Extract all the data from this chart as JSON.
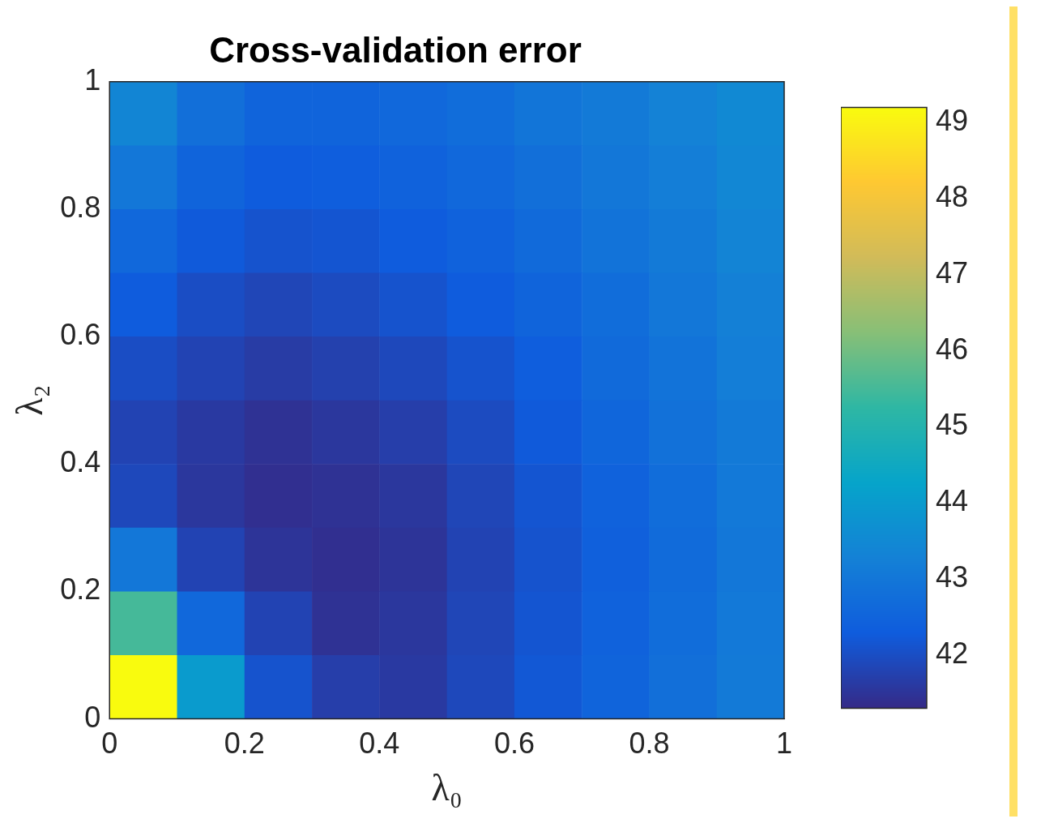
{
  "chart_data": {
    "type": "heatmap",
    "title": "Cross-validation error",
    "xlabel": "λ₀",
    "ylabel": "λ₂",
    "x": [
      0.05,
      0.15,
      0.25,
      0.35,
      0.45,
      0.55,
      0.65,
      0.75,
      0.85,
      0.95
    ],
    "y": [
      0.95,
      0.85,
      0.75,
      0.65,
      0.55,
      0.45,
      0.35,
      0.25,
      0.15,
      0.05
    ],
    "cells": [
      [
        43.4,
        42.8,
        42.5,
        42.5,
        42.6,
        42.75,
        42.95,
        43.1,
        43.3,
        43.5
      ],
      [
        43.0,
        42.5,
        42.3,
        42.35,
        42.45,
        42.6,
        42.8,
        43.0,
        43.2,
        43.45
      ],
      [
        42.6,
        42.25,
        42.1,
        42.15,
        42.3,
        42.45,
        42.65,
        42.9,
        43.1,
        43.35
      ],
      [
        42.3,
        42.0,
        41.85,
        41.95,
        42.1,
        42.3,
        42.5,
        42.75,
        43.0,
        43.25
      ],
      [
        42.0,
        41.8,
        41.65,
        41.75,
        41.9,
        42.1,
        42.35,
        42.65,
        42.9,
        43.2
      ],
      [
        41.8,
        41.6,
        41.45,
        41.55,
        41.7,
        41.95,
        42.25,
        42.55,
        42.85,
        43.1
      ],
      [
        41.9,
        41.55,
        41.4,
        41.45,
        41.55,
        41.85,
        42.15,
        42.45,
        42.75,
        43.05
      ],
      [
        43.0,
        41.8,
        41.5,
        41.4,
        41.5,
        41.8,
        42.1,
        42.4,
        42.7,
        43.0
      ],
      [
        45.5,
        42.6,
        41.8,
        41.45,
        41.55,
        41.85,
        42.15,
        42.45,
        42.75,
        43.05
      ],
      [
        49.2,
        44.0,
        42.1,
        41.7,
        41.6,
        41.9,
        42.2,
        42.5,
        42.8,
        43.1
      ]
    ],
    "xlim": [
      0,
      1
    ],
    "ylim": [
      0,
      1
    ],
    "xticks": [
      0,
      0.2,
      0.4,
      0.6,
      0.8,
      1
    ],
    "yticks": [
      0,
      0.2,
      0.4,
      0.6,
      0.8,
      1
    ],
    "clim": [
      41.3,
      49.2
    ],
    "cticks": [
      42,
      43,
      44,
      45,
      46,
      47,
      48,
      49
    ],
    "grid": false
  }
}
